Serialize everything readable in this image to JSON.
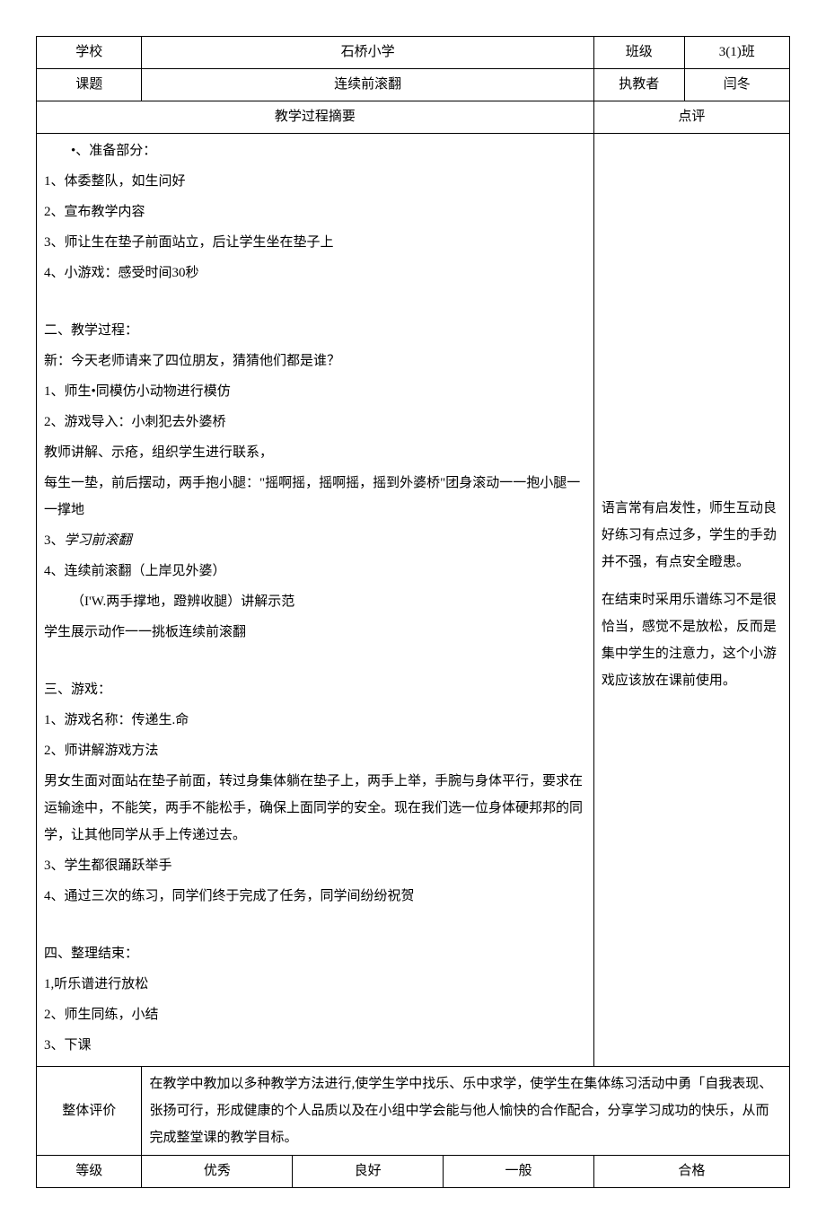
{
  "header": {
    "school_label": "学校",
    "school_value": "石桥小学",
    "class_label": "班级",
    "class_value": "3(1)班",
    "topic_label": "课题",
    "topic_value": "连续前滚翻",
    "teacher_label": "执教者",
    "teacher_value": "闫冬"
  },
  "section_headers": {
    "process": "教学过程摘要",
    "comment": "点评"
  },
  "process": {
    "part1_title": "•、准备部分：",
    "part1_items": [
      "1、体委整队，如生问好",
      "2、宣布教学内容",
      "3、师让生在垫子前面站立，后让学生坐在垫子上",
      "4、小游戏：感受时间30秒"
    ],
    "part2_title": "二、教学过程：",
    "part2_intro": "新：今天老师请来了四位朋友，猜猜他们都是谁？",
    "part2_items": [
      "1、师生•同模仿小动物进行模仿",
      "2、游戏导入：小刺犯去外婆桥",
      "教师讲解、示疮，组织学生进行联系，",
      "每生一垫，前后摆动，两手抱小腿：\"摇啊摇，摇啊摇，摇到外婆桥\"团身滚动一一抱小腿一一撑地"
    ],
    "part2_item3": "3、",
    "part2_item3_italic": "学习前滚翻",
    "part2_item4": "4、连续前滚翻（上岸见外婆）",
    "part2_item4_sub": "（I'W.两手撑地，蹬辨收腿）讲解示范",
    "part2_demo": "学生展示动作一一挑板连续前滚翻",
    "part3_title": "三、游戏：",
    "part3_items": [
      "1、游戏名称：传递生.命",
      "2、师讲解游戏方法",
      "男女生面对面站在垫子前面，转过身集体躺在垫子上，两手上举，手腕与身体平行，要求在运输途中，不能笑，两手不能松手，确保上面同学的安全。现在我们选一位身体硬邦邦的同学，让其他同学从手上传递过去。",
      "3、学生都很踊跃举手",
      "4、通过三次的练习，同学们终于完成了任务，同学间纷纷祝贺"
    ],
    "part4_title": "四、整理结束：",
    "part4_items": [
      "1,听乐谱进行放松",
      "2、师生同练，小结",
      "3、下课"
    ]
  },
  "comment": {
    "para1": "语言常有启发性，师生互动良好练习有点过多，学生的手劲并不强，有点安全瞪患。",
    "para2": "在结束时采用乐谱练习不是很恰当，感觉不是放松，反而是集中学生的注意力，这个小游戏应该放在课前使用。"
  },
  "evaluation": {
    "label": "整体评价",
    "content": "在教学中教加以多种教学方法进行,使学生学中找乐、乐中求学，使学生在集体练习活动中勇「自我表现、张扬可行，形成健康的个人品质以及在小组中学会能与他人愉快的合作配合，分享学习成功的快乐，从而完成整堂课的教学目标。"
  },
  "grade": {
    "label": "等级",
    "options": [
      "优秀",
      "良好",
      "一般",
      "合格"
    ]
  }
}
